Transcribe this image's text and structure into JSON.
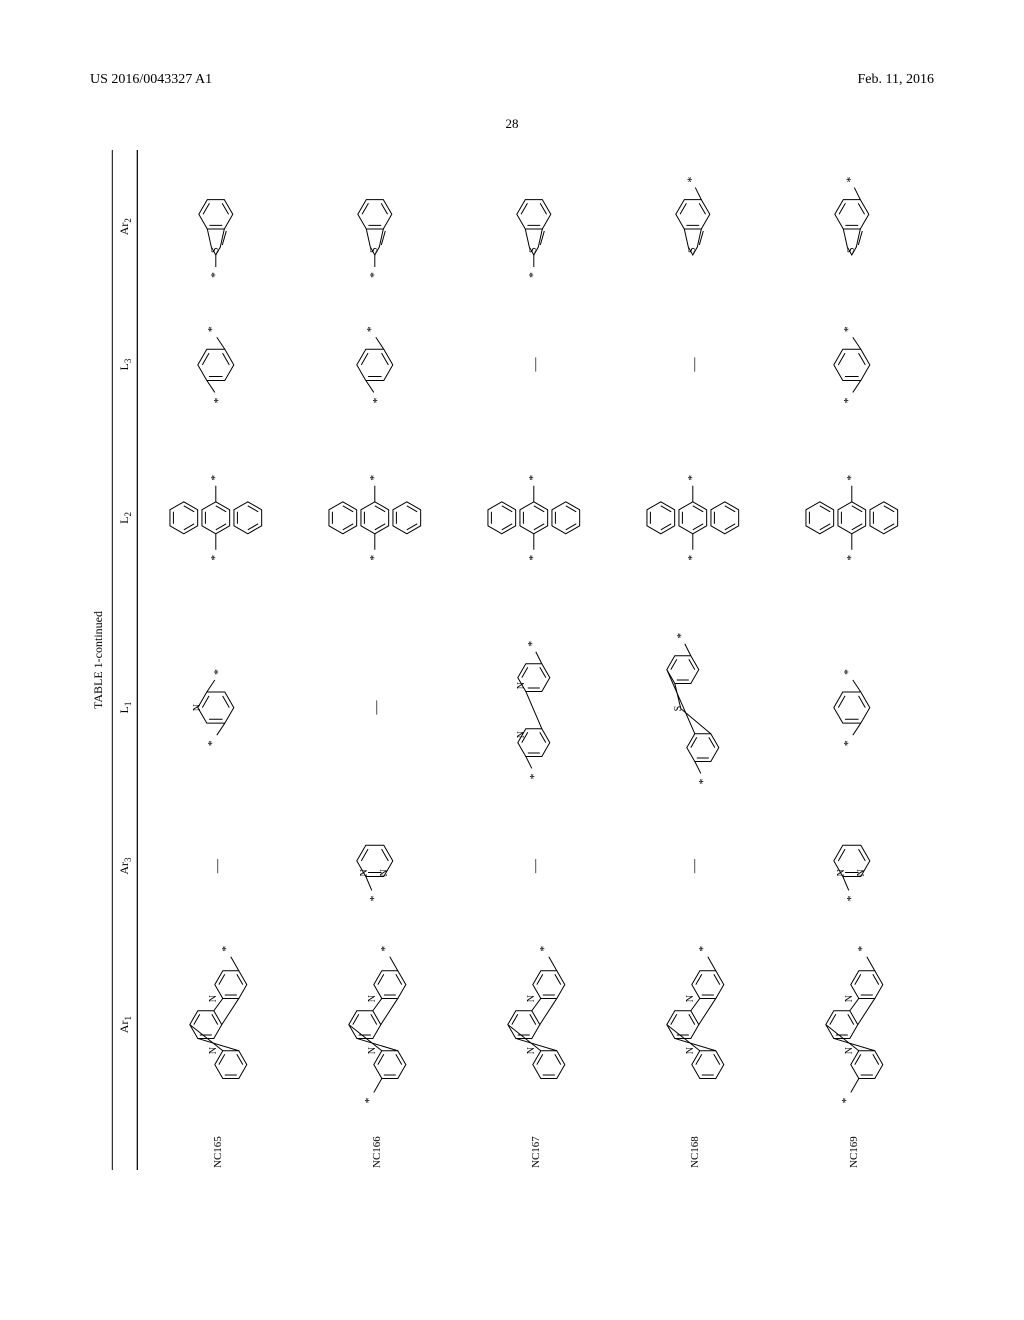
{
  "header": {
    "publication_number": "US 2016/0043327 A1",
    "publication_date": "Feb. 11, 2016",
    "page_number": "28"
  },
  "table": {
    "title": "TABLE 1-continued",
    "columns": {
      "c0": "",
      "c1": "Ar",
      "c1_sub": "1",
      "c2": "Ar",
      "c2_sub": "3",
      "c3": "L",
      "c3_sub": "1",
      "c4": "L",
      "c4_sub": "2",
      "c5": "L",
      "c5_sub": "3",
      "c6": "Ar",
      "c6_sub": "2"
    },
    "rows": [
      {
        "id": "NC165",
        "ar1": "phenanthroline-2-star",
        "ar3": "dash",
        "l1": "pyridine-2-6-bis-star",
        "l2": "anthracene-9-10-bis-star",
        "l3": "phenyl-1-4-bis-star",
        "ar2": "benzothiophene-2-star"
      },
      {
        "id": "NC166",
        "ar1": "phenanthroline-2-9-bis-star",
        "ar3": "pyrimidine-2-star",
        "l1": "dash",
        "l2": "anthracene-9-10-bis-star",
        "l3": "phenyl-1-4-bis-star",
        "ar2": "benzothiophene-2-star"
      },
      {
        "id": "NC167",
        "ar1": "phenanthroline-2-star",
        "ar3": "dash",
        "l1": "bipyridine-bis-star",
        "l2": "anthracene-9-10-bis-star",
        "l3": "dash",
        "ar2": "benzothiophene-2-star"
      },
      {
        "id": "NC168",
        "ar1": "phenanthroline-2-star",
        "ar3": "dash",
        "l1": "dibenzothiophene-bis-star",
        "l2": "anthracene-9-10-bis-star",
        "l3": "dash",
        "ar2": "benzothiophene-5-star"
      },
      {
        "id": "NC169",
        "ar1": "phenanthroline-2-9-bis-star",
        "ar3": "pyrimidine-2-star",
        "l1": "phenyl-1-3-bis-star",
        "l2": "anthracene-9-10-bis-star",
        "l3": "phenyl-1-3-bis-star",
        "ar2": "benzothiophene-5-star"
      }
    ]
  },
  "colors": {
    "text": "#000000",
    "background": "#ffffff",
    "line": "#000000"
  },
  "stroke_width": 1.0,
  "star_glyph": "*"
}
